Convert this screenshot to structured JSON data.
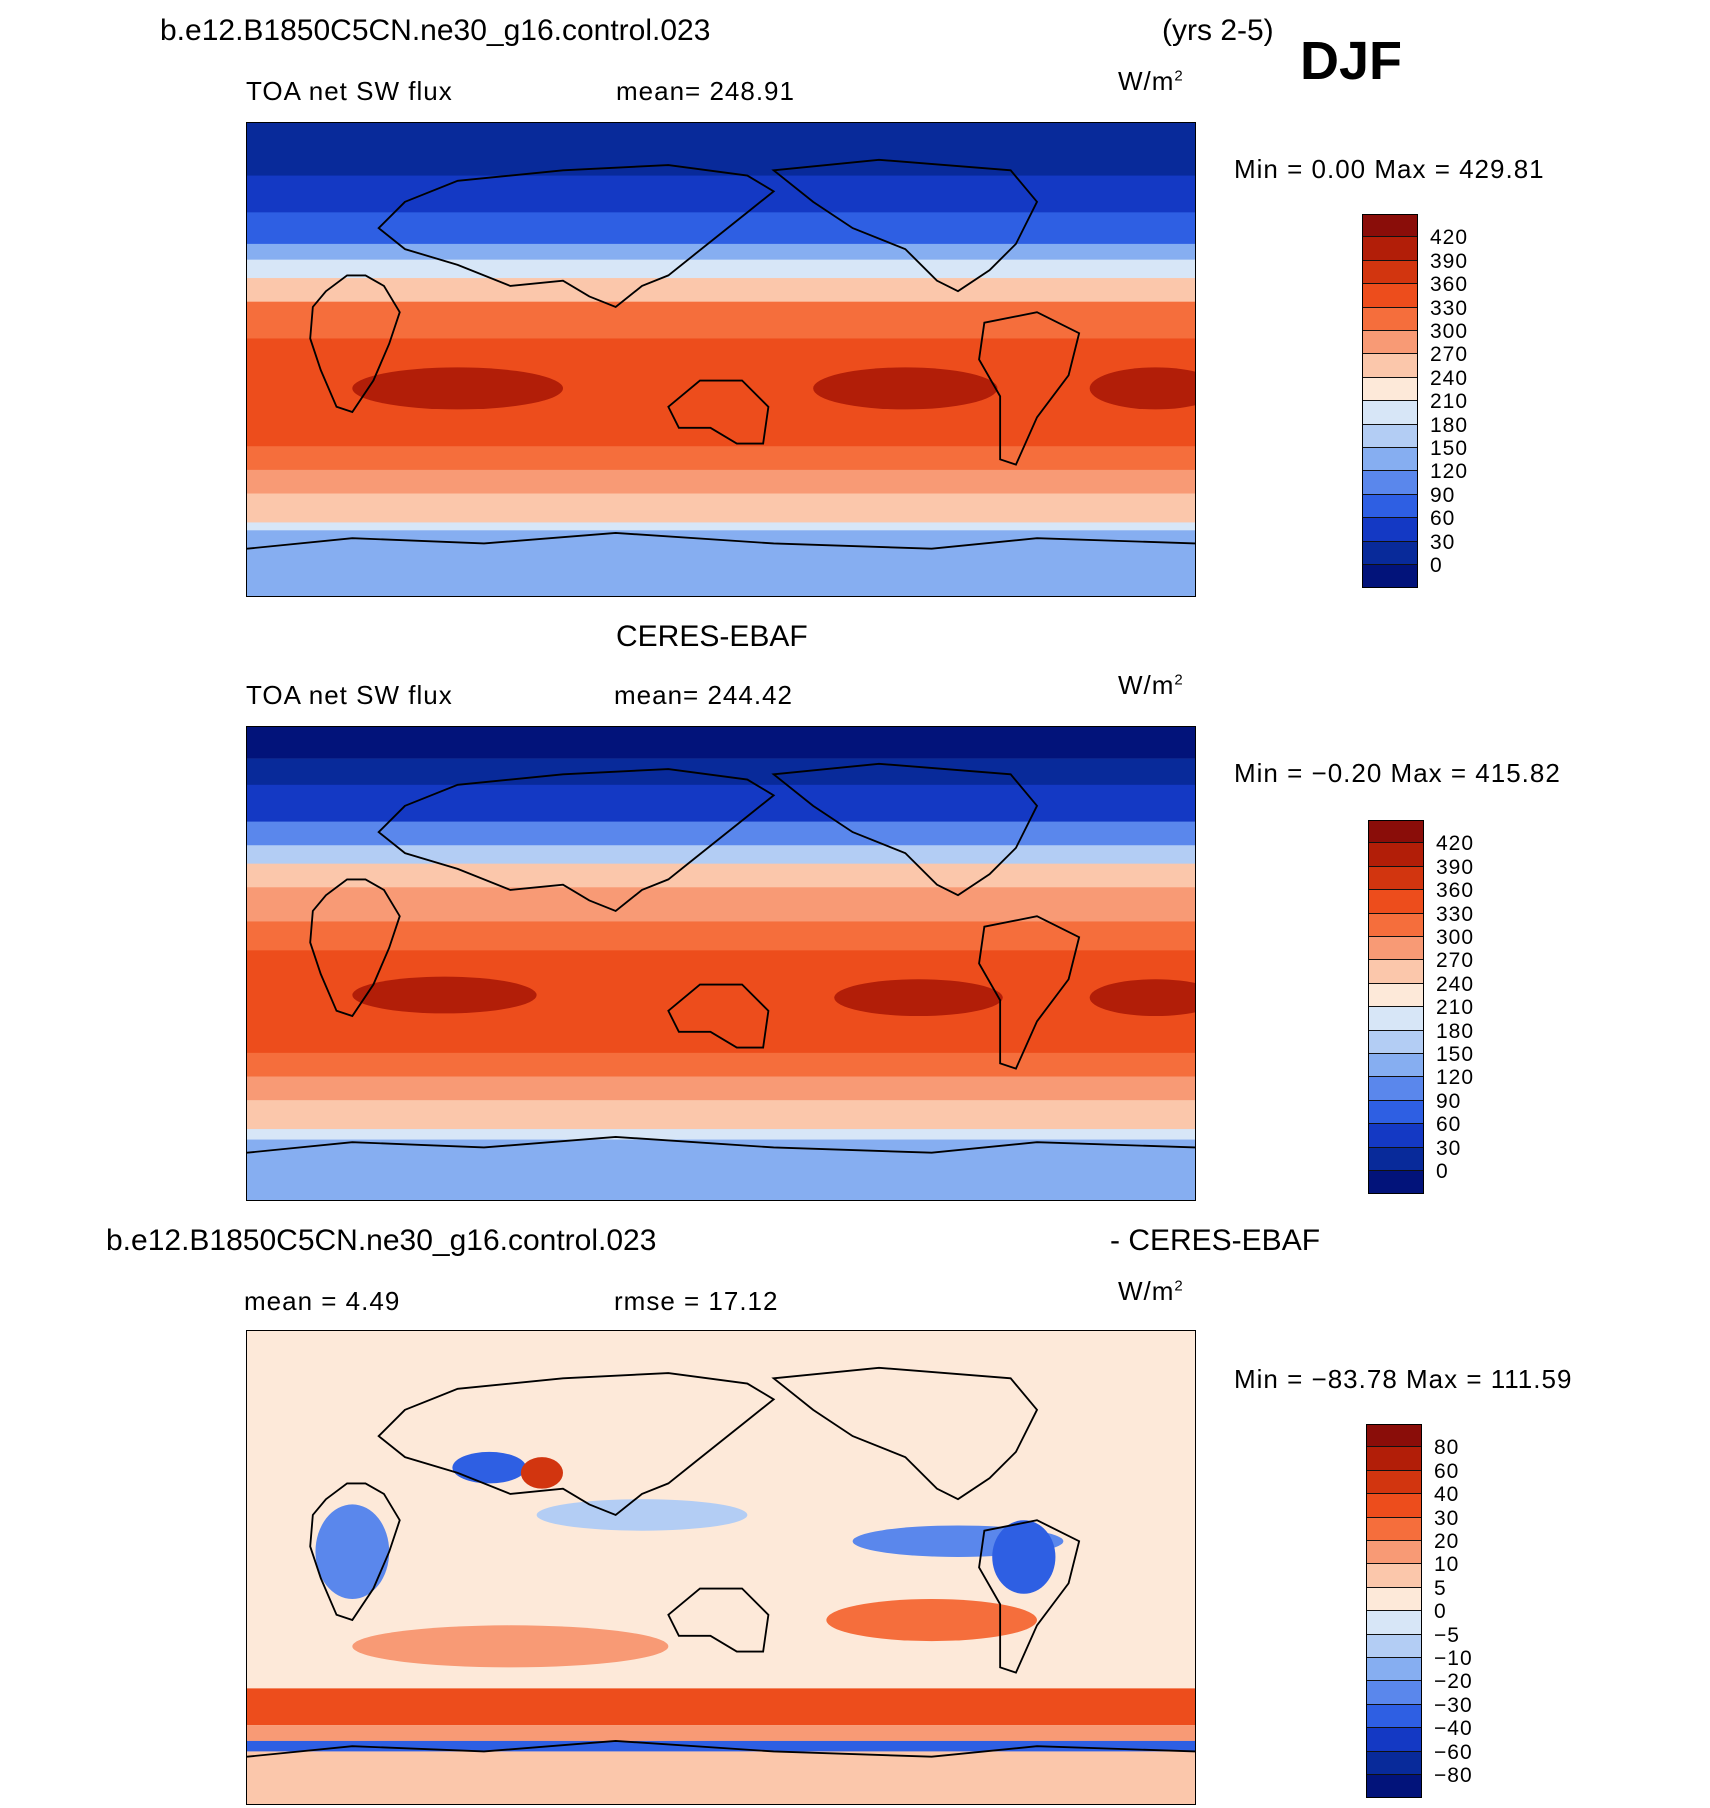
{
  "header": {
    "case_name": "b.e12.B1850C5CN.ne30_g16.control.023",
    "years": "(yrs 2-5)",
    "season": "DJF"
  },
  "panels": [
    {
      "title": "",
      "variable": "TOA net SW flux",
      "mean": "mean= 248.91",
      "units": "W/m",
      "units_exp": "2",
      "minmax": "Min =    0.00 Max = 429.81",
      "colorbar": {
        "labels": [
          "420",
          "390",
          "360",
          "330",
          "300",
          "270",
          "240",
          "210",
          "180",
          "150",
          "120",
          "90",
          "60",
          "30",
          "0"
        ],
        "colors": [
          "#8a0d09",
          "#b21e08",
          "#d2350f",
          "#ed4d1c",
          "#f56e3c",
          "#f89a75",
          "#fbc7ab",
          "#fde9d9",
          "#d7e6f7",
          "#b3cdf4",
          "#86aef1",
          "#5a87ec",
          "#2e5fe3",
          "#1439c4",
          "#082a9a",
          "#02137a"
        ]
      }
    },
    {
      "title": "CERES-EBAF",
      "variable": "TOA net SW flux",
      "mean": "mean= 244.42",
      "units": "W/m",
      "units_exp": "2",
      "minmax": "Min =  −0.20 Max = 415.82",
      "colorbar": {
        "labels": [
          "420",
          "390",
          "360",
          "330",
          "300",
          "270",
          "240",
          "210",
          "180",
          "150",
          "120",
          "90",
          "60",
          "30",
          "0"
        ],
        "colors": [
          "#8a0d09",
          "#b21e08",
          "#d2350f",
          "#ed4d1c",
          "#f56e3c",
          "#f89a75",
          "#fbc7ab",
          "#fde9d9",
          "#d7e6f7",
          "#b3cdf4",
          "#86aef1",
          "#5a87ec",
          "#2e5fe3",
          "#1439c4",
          "#082a9a",
          "#02137a"
        ]
      }
    },
    {
      "title_left": "b.e12.B1850C5CN.ne30_g16.control.023",
      "title_right": "- CERES-EBAF",
      "mean": "mean =    4.49",
      "rmse": "rmse =   17.12",
      "units": "W/m",
      "units_exp": "2",
      "minmax": "Min = −83.78 Max = 111.59",
      "colorbar": {
        "labels": [
          "80",
          "60",
          "40",
          "30",
          "20",
          "10",
          "5",
          "0",
          "−5",
          "−10",
          "−20",
          "−30",
          "−40",
          "−60",
          "−80"
        ],
        "colors": [
          "#8a0d09",
          "#b21e08",
          "#d2350f",
          "#ed4d1c",
          "#f56e3c",
          "#f89a75",
          "#fbc7ab",
          "#fde9d9",
          "#d7e6f7",
          "#b3cdf4",
          "#86aef1",
          "#5a87ec",
          "#2e5fe3",
          "#1439c4",
          "#082a9a",
          "#02137a"
        ]
      }
    }
  ]
}
